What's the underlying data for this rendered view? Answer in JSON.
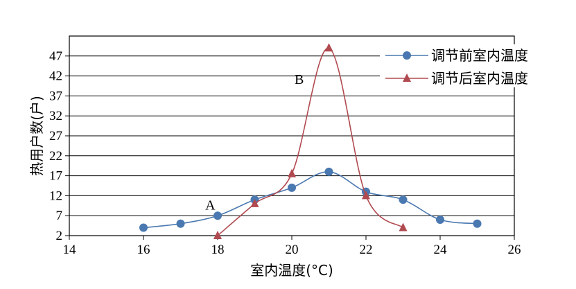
{
  "chart_data": {
    "type": "line",
    "xlabel": "室内温度(°C)",
    "ylabel": "热用户数(户)",
    "xlim": [
      14,
      26
    ],
    "ylim": [
      2,
      52
    ],
    "xticks": [
      "14",
      "16",
      "18",
      "20",
      "22",
      "24",
      "26"
    ],
    "yticks": [
      "2",
      "7",
      "12",
      "17",
      "22",
      "27",
      "32",
      "37",
      "42",
      "47"
    ],
    "grid": "horizontal",
    "legend_position": "top-right",
    "series": [
      {
        "name": "调节前室内温度",
        "marker": "circle",
        "color": "#4a78b0",
        "points": [
          [
            16,
            4
          ],
          [
            17,
            5
          ],
          [
            18,
            7
          ],
          [
            19,
            11
          ],
          [
            20,
            14
          ],
          [
            21,
            18
          ],
          [
            22,
            13
          ],
          [
            23,
            11
          ],
          [
            24,
            6
          ],
          [
            25,
            5
          ]
        ]
      },
      {
        "name": "调节后室内温度",
        "marker": "triangle",
        "color": "#b04a50",
        "points": [
          [
            18,
            2
          ],
          [
            19,
            10
          ],
          [
            20,
            17.5
          ],
          [
            21,
            49
          ],
          [
            22,
            12
          ],
          [
            23,
            4
          ]
        ]
      }
    ],
    "annotations": [
      {
        "text": "A",
        "x": 17.8,
        "y": 8.5
      },
      {
        "text": "B",
        "x": 20.2,
        "y": 40
      }
    ]
  }
}
